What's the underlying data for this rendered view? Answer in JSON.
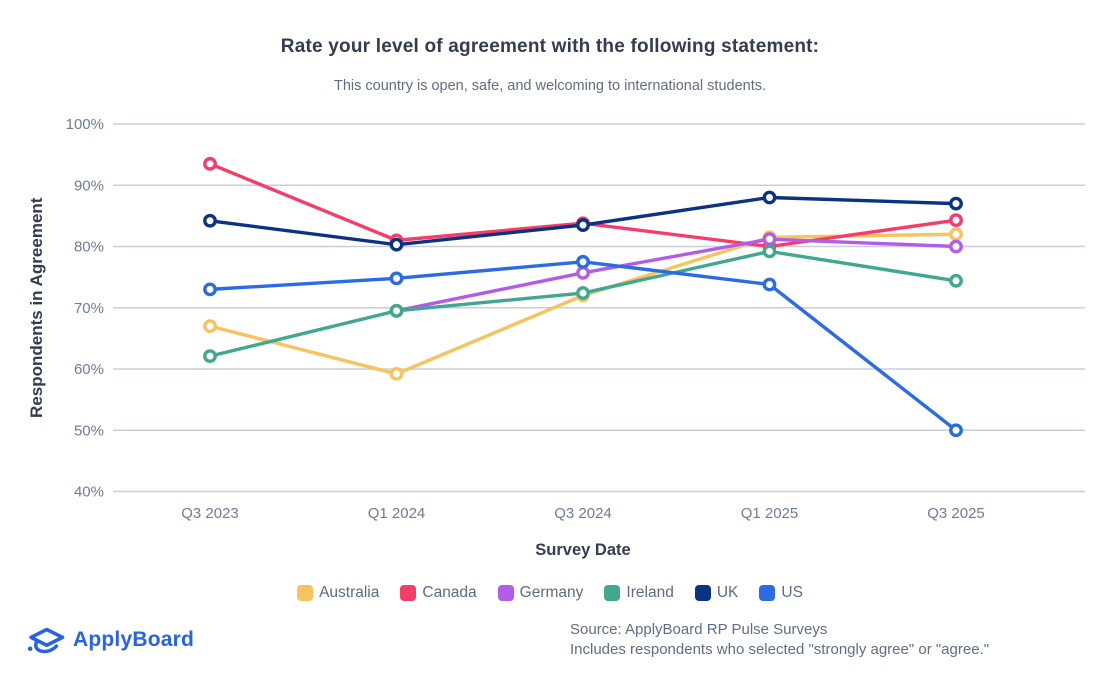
{
  "title": "Rate your level of agreement with the following statement:",
  "subtitle": "This country is open, safe, and welcoming to international students.",
  "chart_data": {
    "type": "line",
    "x": [
      "Q3 2023",
      "Q1 2024",
      "Q3 2024",
      "Q1 2025",
      "Q3 2025"
    ],
    "xlabel": "Survey Date",
    "ylabel": "Respondents in Agreement",
    "ylim": [
      40,
      100
    ],
    "yticks": [
      100,
      90,
      80,
      70,
      60,
      50,
      40
    ],
    "ytick_suffix": "%",
    "grid": "horizontal",
    "legend_position": "bottom",
    "series": [
      {
        "name": "Australia",
        "color": "#F7C35C",
        "values": [
          67,
          59.2,
          72,
          81.5,
          82
        ]
      },
      {
        "name": "Canada",
        "color": "#F43D68",
        "values": [
          93.5,
          81,
          83.8,
          80,
          84.3
        ]
      },
      {
        "name": "Germany",
        "color": "#B25CE8",
        "values": [
          null,
          69.5,
          75.7,
          81.2,
          80
        ]
      },
      {
        "name": "Ireland",
        "color": "#3FA88E",
        "values": [
          62.1,
          69.5,
          72.4,
          79.2,
          74.4
        ]
      },
      {
        "name": "UK",
        "color": "#0A3384",
        "values": [
          84.2,
          80.3,
          83.5,
          88,
          87
        ]
      },
      {
        "name": "US",
        "color": "#2B6BE5",
        "values": [
          73,
          74.8,
          77.5,
          73.8,
          50
        ]
      }
    ]
  },
  "footer": {
    "logo_text": "ApplyBoard",
    "logo_icon": "graduation-cap-icon",
    "source_line1": "Source: ApplyBoard RP Pulse Surveys",
    "source_line2": "Includes respondents who selected \"strongly agree\" or \"agree.\""
  },
  "colors": {
    "title": "#333C50",
    "subtitle": "#606D82",
    "tick_label": "#6E7C96",
    "axis_title": "#333C50",
    "gridline": "#C9CEDA",
    "legend_text": "#5C6B86",
    "source_text": "#5F6D87",
    "logo_blue": "#2563E8",
    "background": "#FFFFFF"
  }
}
